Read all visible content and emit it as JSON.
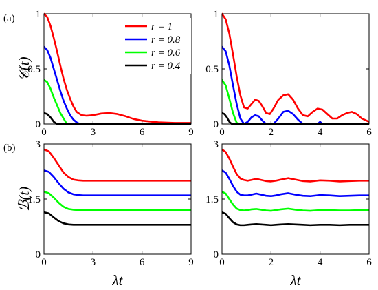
{
  "panel_labels": {
    "a": "(a)",
    "b": "(b)"
  },
  "ylabels": {
    "top": "𝒞(t)",
    "bottom": "ℬ(t)"
  },
  "xlabel": "λt",
  "legend": {
    "placement": "top-right of panel (a) left",
    "entries": [
      {
        "label": "r = 1",
        "color": "#ff0000"
      },
      {
        "label": "r = 0.8",
        "color": "#0000ff"
      },
      {
        "label": "r = 0.6",
        "color": "#00ff00"
      },
      {
        "label": "r = 0.4",
        "color": "#000000"
      }
    ]
  },
  "chart_data": [
    {
      "type": "line",
      "panel": "top-left",
      "xlim": [
        0,
        9
      ],
      "ylim": [
        0,
        1
      ],
      "xticks": [
        "0",
        "3",
        "6",
        "9"
      ],
      "xtick_values": [
        0,
        3,
        6,
        9
      ],
      "yticks": [
        "0",
        "0.5",
        "1"
      ],
      "ytick_values": [
        0,
        0.5,
        1
      ],
      "series": [
        {
          "name": "r = 1",
          "color": "#ff0000",
          "x": [
            0,
            0.2,
            0.4,
            0.6,
            0.8,
            1.0,
            1.2,
            1.4,
            1.6,
            1.8,
            2.0,
            2.3,
            2.6,
            3.0,
            3.5,
            4.0,
            4.5,
            5.0,
            5.5,
            6.0,
            7.0,
            8.0,
            9.0
          ],
          "y": [
            1.0,
            0.97,
            0.89,
            0.78,
            0.66,
            0.53,
            0.41,
            0.31,
            0.23,
            0.16,
            0.11,
            0.08,
            0.075,
            0.08,
            0.095,
            0.1,
            0.09,
            0.07,
            0.045,
            0.03,
            0.015,
            0.01,
            0.01
          ]
        },
        {
          "name": "r = 0.8",
          "color": "#0000ff",
          "x": [
            0,
            0.2,
            0.4,
            0.6,
            0.8,
            1.0,
            1.2,
            1.4,
            1.6,
            1.8,
            2.0,
            2.2,
            2.4,
            2.6,
            9.0
          ],
          "y": [
            0.7,
            0.67,
            0.6,
            0.5,
            0.4,
            0.3,
            0.21,
            0.14,
            0.08,
            0.04,
            0.015,
            0.0,
            0.0,
            0.0,
            0.0
          ]
        },
        {
          "name": "r = 0.6",
          "color": "#00ff00",
          "x": [
            0,
            0.2,
            0.4,
            0.6,
            0.8,
            1.0,
            1.2,
            1.4,
            1.6,
            9.0
          ],
          "y": [
            0.4,
            0.38,
            0.32,
            0.24,
            0.17,
            0.1,
            0.05,
            0.0,
            0.0,
            0.0
          ]
        },
        {
          "name": "r = 0.4",
          "color": "#000000",
          "x": [
            0,
            0.2,
            0.4,
            0.6,
            0.8,
            9.0
          ],
          "y": [
            0.1,
            0.09,
            0.06,
            0.02,
            0.0,
            0.0
          ]
        }
      ]
    },
    {
      "type": "line",
      "panel": "top-right",
      "xlim": [
        0,
        6
      ],
      "ylim": [
        0,
        1
      ],
      "xticks": [
        "0",
        "2",
        "4",
        "6"
      ],
      "xtick_values": [
        0,
        2,
        4,
        6
      ],
      "yticks": [
        "0",
        "0.5",
        "1"
      ],
      "ytick_values": [
        0,
        0.5,
        1
      ],
      "series": [
        {
          "name": "r = 1",
          "color": "#ff0000",
          "x": [
            0,
            0.15,
            0.3,
            0.45,
            0.6,
            0.75,
            0.9,
            1.05,
            1.2,
            1.35,
            1.5,
            1.65,
            1.8,
            1.95,
            2.1,
            2.3,
            2.5,
            2.7,
            2.9,
            3.1,
            3.3,
            3.5,
            3.7,
            3.9,
            4.1,
            4.3,
            4.5,
            4.7,
            4.9,
            5.1,
            5.3,
            5.5,
            5.7,
            5.9,
            6.0
          ],
          "y": [
            1.0,
            0.95,
            0.82,
            0.63,
            0.43,
            0.26,
            0.15,
            0.14,
            0.18,
            0.22,
            0.21,
            0.16,
            0.1,
            0.09,
            0.14,
            0.22,
            0.26,
            0.27,
            0.22,
            0.14,
            0.08,
            0.07,
            0.11,
            0.14,
            0.13,
            0.09,
            0.05,
            0.05,
            0.08,
            0.1,
            0.11,
            0.09,
            0.05,
            0.03,
            0.02
          ]
        },
        {
          "name": "r = 0.8",
          "color": "#0000ff",
          "x": [
            0,
            0.15,
            0.3,
            0.45,
            0.6,
            0.75,
            0.9,
            1.05,
            1.2,
            1.35,
            1.5,
            1.65,
            1.8,
            1.95,
            2.1,
            2.3,
            2.5,
            2.7,
            2.9,
            3.1,
            3.3,
            3.5,
            3.7,
            3.9,
            4.0,
            4.1,
            4.2,
            6.0
          ],
          "y": [
            0.7,
            0.66,
            0.53,
            0.35,
            0.18,
            0.05,
            0.0,
            0.02,
            0.06,
            0.08,
            0.07,
            0.03,
            0.0,
            0.0,
            0.0,
            0.05,
            0.11,
            0.12,
            0.09,
            0.04,
            0.0,
            0.0,
            0.0,
            0.0,
            0.02,
            0.0,
            0.0,
            0.0
          ]
        },
        {
          "name": "r = 0.6",
          "color": "#00ff00",
          "x": [
            0,
            0.15,
            0.3,
            0.45,
            0.6,
            0.75,
            6.0
          ],
          "y": [
            0.4,
            0.35,
            0.23,
            0.1,
            0.01,
            0.0,
            0.0
          ]
        },
        {
          "name": "r = 0.4",
          "color": "#000000",
          "x": [
            0,
            0.1,
            0.2,
            0.3,
            0.4,
            6.0
          ],
          "y": [
            0.1,
            0.09,
            0.06,
            0.02,
            0.0,
            0.0
          ]
        }
      ]
    },
    {
      "type": "line",
      "panel": "bottom-left",
      "xlim": [
        0,
        9
      ],
      "ylim": [
        0,
        3
      ],
      "xticks": [
        "0",
        "3",
        "6",
        "9"
      ],
      "xtick_values": [
        0,
        3,
        6,
        9
      ],
      "yticks": [
        "0",
        "1.5",
        "3"
      ],
      "ytick_values": [
        0,
        1.5,
        3
      ],
      "series": [
        {
          "name": "r = 1",
          "color": "#ff0000",
          "x": [
            0,
            0.3,
            0.6,
            0.9,
            1.2,
            1.5,
            1.8,
            2.1,
            2.4,
            3.0,
            4.0,
            5.0,
            6.0,
            7.0,
            8.0,
            9.0
          ],
          "y": [
            2.85,
            2.8,
            2.62,
            2.42,
            2.22,
            2.1,
            2.03,
            2.01,
            2.0,
            2.0,
            2.0,
            2.0,
            2.0,
            2.0,
            2.0,
            2.0
          ]
        },
        {
          "name": "r = 0.8",
          "color": "#0000ff",
          "x": [
            0,
            0.3,
            0.6,
            0.9,
            1.2,
            1.5,
            1.8,
            2.1,
            2.4,
            3.0,
            4.0,
            5.0,
            6.0,
            7.0,
            8.0,
            9.0
          ],
          "y": [
            2.28,
            2.24,
            2.1,
            1.93,
            1.78,
            1.68,
            1.63,
            1.61,
            1.6,
            1.6,
            1.6,
            1.6,
            1.6,
            1.6,
            1.6,
            1.6
          ]
        },
        {
          "name": "r = 0.6",
          "color": "#00ff00",
          "x": [
            0,
            0.3,
            0.6,
            0.9,
            1.2,
            1.5,
            1.8,
            2.1,
            2.4,
            3.0,
            4.0,
            5.0,
            6.0,
            7.0,
            8.0,
            9.0
          ],
          "y": [
            1.7,
            1.66,
            1.54,
            1.4,
            1.29,
            1.23,
            1.21,
            1.2,
            1.2,
            1.2,
            1.2,
            1.2,
            1.2,
            1.2,
            1.2,
            1.2
          ]
        },
        {
          "name": "r = 0.4",
          "color": "#000000",
          "x": [
            0,
            0.3,
            0.6,
            0.9,
            1.2,
            1.5,
            1.8,
            2.1,
            2.4,
            3.0,
            4.0,
            5.0,
            6.0,
            7.0,
            8.0,
            9.0
          ],
          "y": [
            1.14,
            1.11,
            1.0,
            0.9,
            0.84,
            0.81,
            0.8,
            0.8,
            0.8,
            0.8,
            0.8,
            0.8,
            0.8,
            0.8,
            0.8,
            0.8
          ]
        }
      ]
    },
    {
      "type": "line",
      "panel": "bottom-right",
      "xlim": [
        0,
        6
      ],
      "ylim": [
        0,
        3
      ],
      "xticks": [
        "0",
        "2",
        "4",
        "6"
      ],
      "xtick_values": [
        0,
        2,
        4,
        6
      ],
      "yticks": [
        "0",
        "1.5",
        "3"
      ],
      "ytick_values": [
        0,
        1.5,
        3
      ],
      "series": [
        {
          "name": "r = 1",
          "color": "#ff0000",
          "x": [
            0,
            0.15,
            0.3,
            0.45,
            0.6,
            0.75,
            0.9,
            1.05,
            1.2,
            1.4,
            1.6,
            1.8,
            2.0,
            2.2,
            2.4,
            2.7,
            3.0,
            3.3,
            3.6,
            4.0,
            4.4,
            4.8,
            5.2,
            5.6,
            6.0
          ],
          "y": [
            2.85,
            2.78,
            2.6,
            2.38,
            2.18,
            2.06,
            2.02,
            2.0,
            2.02,
            2.05,
            2.02,
            1.99,
            1.98,
            2.0,
            2.03,
            2.07,
            2.03,
            1.99,
            1.98,
            2.01,
            2.0,
            1.98,
            1.99,
            2.0,
            2.0
          ]
        },
        {
          "name": "r = 0.8",
          "color": "#0000ff",
          "x": [
            0,
            0.15,
            0.3,
            0.45,
            0.6,
            0.75,
            0.9,
            1.05,
            1.2,
            1.4,
            1.6,
            1.8,
            2.0,
            2.2,
            2.4,
            2.7,
            3.0,
            3.3,
            3.6,
            4.0,
            4.4,
            4.8,
            5.2,
            5.6,
            6.0
          ],
          "y": [
            2.28,
            2.22,
            2.05,
            1.86,
            1.7,
            1.62,
            1.6,
            1.6,
            1.62,
            1.65,
            1.62,
            1.59,
            1.58,
            1.6,
            1.63,
            1.66,
            1.62,
            1.59,
            1.58,
            1.61,
            1.6,
            1.58,
            1.59,
            1.6,
            1.6
          ]
        },
        {
          "name": "r = 0.6",
          "color": "#00ff00",
          "x": [
            0,
            0.15,
            0.3,
            0.45,
            0.6,
            0.75,
            0.9,
            1.05,
            1.2,
            1.4,
            1.6,
            1.8,
            2.0,
            2.2,
            2.4,
            2.7,
            3.0,
            3.3,
            3.6,
            4.0,
            4.4,
            4.8,
            5.2,
            5.6,
            6.0
          ],
          "y": [
            1.7,
            1.65,
            1.5,
            1.35,
            1.24,
            1.2,
            1.19,
            1.2,
            1.22,
            1.23,
            1.21,
            1.19,
            1.18,
            1.2,
            1.22,
            1.24,
            1.21,
            1.19,
            1.18,
            1.2,
            1.2,
            1.19,
            1.19,
            1.2,
            1.2
          ]
        },
        {
          "name": "r = 0.4",
          "color": "#000000",
          "x": [
            0,
            0.15,
            0.3,
            0.45,
            0.6,
            0.75,
            0.9,
            1.05,
            1.2,
            1.4,
            1.6,
            1.8,
            2.0,
            2.2,
            2.4,
            2.7,
            3.0,
            3.3,
            3.6,
            4.0,
            4.4,
            4.8,
            5.2,
            5.6,
            6.0
          ],
          "y": [
            1.14,
            1.1,
            0.98,
            0.87,
            0.81,
            0.79,
            0.79,
            0.8,
            0.81,
            0.82,
            0.81,
            0.8,
            0.79,
            0.8,
            0.81,
            0.82,
            0.81,
            0.8,
            0.79,
            0.8,
            0.8,
            0.79,
            0.8,
            0.8,
            0.8
          ]
        }
      ]
    }
  ]
}
